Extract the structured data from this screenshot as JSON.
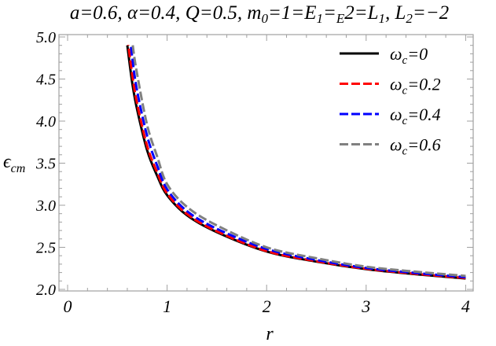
{
  "chart_data": {
    "type": "line",
    "title": "a=0.6, α=0.4, Q=0.5, m0=1=E1=E2=L1, L2=−2",
    "title_parts": [
      "a=0.6, ",
      "α",
      "=0.4, ",
      "Q",
      "=0.5, ",
      "m",
      "0",
      "=1=",
      "E",
      "1",
      "=",
      "E",
      "2",
      "=",
      "L",
      "1",
      ", ",
      "L",
      "2",
      "=−2"
    ],
    "xlabel": "r",
    "ylabel": "ϵ",
    "ylabel_sub": "cm",
    "xlim": [
      -0.05,
      4.05
    ],
    "ylim": [
      2.0,
      5.0
    ],
    "xticks": [
      "0",
      "1",
      "2",
      "3",
      "4"
    ],
    "yticks": [
      "2.0",
      "2.5",
      "3.0",
      "3.5",
      "4.0",
      "4.5",
      "5.0"
    ],
    "legend_position": "top-right",
    "grid": false,
    "x": [
      0.6,
      0.65,
      0.7,
      0.8,
      0.9,
      1.0,
      1.2,
      1.5,
      2.0,
      2.5,
      3.0,
      3.5,
      4.0
    ],
    "series": [
      {
        "name": "ωc=0",
        "legend_symbol": "ω",
        "legend_sub": "c",
        "legend_value": "=0",
        "color": "#000000",
        "dash": "solid",
        "values": [
          4.9,
          4.45,
          4.13,
          3.65,
          3.35,
          3.12,
          2.88,
          2.68,
          2.45,
          2.33,
          2.24,
          2.18,
          2.13
        ]
      },
      {
        "name": "ωc=0.2",
        "legend_symbol": "ω",
        "legend_sub": "c",
        "legend_value": "=0.2",
        "color": "#ff0000",
        "dash": "dashed",
        "values": [
          5.0,
          4.55,
          4.2,
          3.7,
          3.39,
          3.14,
          2.895,
          2.69,
          2.455,
          2.335,
          2.245,
          2.185,
          2.135
        ]
      },
      {
        "name": "ωc=0.4",
        "legend_symbol": "ω",
        "legend_sub": "c",
        "legend_value": "=0.4",
        "color": "#0000ff",
        "dash": "dashed",
        "values": [
          5.3,
          4.75,
          4.35,
          3.82,
          3.47,
          3.19,
          2.93,
          2.72,
          2.48,
          2.35,
          2.255,
          2.195,
          2.145
        ]
      },
      {
        "name": "ωc=0.6",
        "legend_symbol": "ω",
        "legend_sub": "c",
        "legend_value": "=0.6",
        "color": "#808080",
        "dash": "dashed",
        "values": [
          5.6,
          4.95,
          4.55,
          3.95,
          3.58,
          3.25,
          2.98,
          2.76,
          2.5,
          2.37,
          2.27,
          2.21,
          2.16
        ]
      }
    ]
  }
}
